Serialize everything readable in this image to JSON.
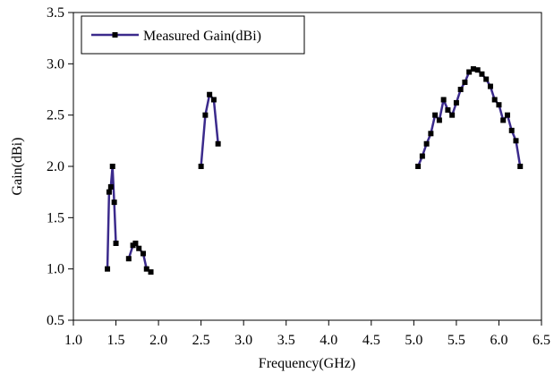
{
  "chart_data": {
    "type": "line",
    "xlabel": "Frequency(GHz)",
    "ylabel": "Gain(dBi)",
    "xlim": [
      1.0,
      6.5
    ],
    "ylim": [
      0.5,
      3.5
    ],
    "x_ticks": [
      1.0,
      1.5,
      2.0,
      2.5,
      3.0,
      3.5,
      4.0,
      4.5,
      5.0,
      5.5,
      6.0,
      6.5
    ],
    "y_ticks": [
      0.5,
      1.0,
      1.5,
      2.0,
      2.5,
      3.0,
      3.5
    ],
    "x_tick_labels": [
      "1.0",
      "1.5",
      "2.0",
      "2.5",
      "3.0",
      "3.5",
      "4.0",
      "4.5",
      "5.0",
      "5.5",
      "6.0",
      "6.5"
    ],
    "y_tick_labels": [
      "0.5",
      "1.0",
      "1.5",
      "2.0",
      "2.5",
      "3.0",
      "3.5"
    ],
    "grid": false,
    "legend_position": "top-left",
    "line_color": "#3b2a8c",
    "marker_color": "#000000",
    "series": [
      {
        "name": "Measured Gain(dBi)",
        "segments": [
          [
            {
              "x": 1.4,
              "y": 1.0
            },
            {
              "x": 1.42,
              "y": 1.75
            },
            {
              "x": 1.44,
              "y": 1.8
            },
            {
              "x": 1.46,
              "y": 2.0
            },
            {
              "x": 1.48,
              "y": 1.65
            },
            {
              "x": 1.5,
              "y": 1.25
            }
          ],
          [
            {
              "x": 1.65,
              "y": 1.1
            },
            {
              "x": 1.7,
              "y": 1.23
            },
            {
              "x": 1.73,
              "y": 1.25
            },
            {
              "x": 1.77,
              "y": 1.2
            },
            {
              "x": 1.82,
              "y": 1.15
            },
            {
              "x": 1.86,
              "y": 1.0
            },
            {
              "x": 1.91,
              "y": 0.97
            }
          ],
          [
            {
              "x": 2.5,
              "y": 2.0
            },
            {
              "x": 2.55,
              "y": 2.5
            },
            {
              "x": 2.6,
              "y": 2.7
            },
            {
              "x": 2.65,
              "y": 2.65
            },
            {
              "x": 2.7,
              "y": 2.22
            }
          ],
          [
            {
              "x": 5.05,
              "y": 2.0
            },
            {
              "x": 5.1,
              "y": 2.1
            },
            {
              "x": 5.15,
              "y": 2.22
            },
            {
              "x": 5.2,
              "y": 2.32
            },
            {
              "x": 5.25,
              "y": 2.5
            },
            {
              "x": 5.3,
              "y": 2.45
            },
            {
              "x": 5.35,
              "y": 2.65
            },
            {
              "x": 5.4,
              "y": 2.55
            },
            {
              "x": 5.45,
              "y": 2.5
            },
            {
              "x": 5.5,
              "y": 2.62
            },
            {
              "x": 5.55,
              "y": 2.75
            },
            {
              "x": 5.6,
              "y": 2.82
            },
            {
              "x": 5.65,
              "y": 2.92
            },
            {
              "x": 5.7,
              "y": 2.95
            },
            {
              "x": 5.75,
              "y": 2.94
            },
            {
              "x": 5.8,
              "y": 2.9
            },
            {
              "x": 5.85,
              "y": 2.85
            },
            {
              "x": 5.9,
              "y": 2.78
            },
            {
              "x": 5.95,
              "y": 2.65
            },
            {
              "x": 6.0,
              "y": 2.6
            },
            {
              "x": 6.05,
              "y": 2.45
            },
            {
              "x": 6.1,
              "y": 2.5
            },
            {
              "x": 6.15,
              "y": 2.35
            },
            {
              "x": 6.2,
              "y": 2.25
            },
            {
              "x": 6.25,
              "y": 2.0
            }
          ]
        ]
      }
    ]
  }
}
